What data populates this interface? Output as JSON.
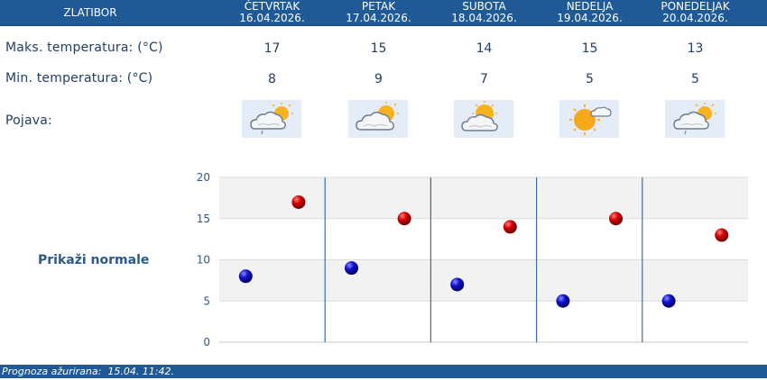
{
  "header": {
    "location": "ZLATIBOR",
    "days": [
      {
        "name": "ČETVRTAK",
        "date": "16.04.2026."
      },
      {
        "name": "PETAK",
        "date": "17.04.2026."
      },
      {
        "name": "SUBOTA",
        "date": "18.04.2026."
      },
      {
        "name": "NEDELJA",
        "date": "19.04.2026."
      },
      {
        "name": "PONEDELJAK",
        "date": "20.04.2026."
      }
    ]
  },
  "rows": {
    "max_label": "Maks. temperatura: (°C)",
    "min_label": "Min. temperatura: (°C)",
    "phenomenon_label": "Pojava:"
  },
  "max_temps": [
    "17",
    "15",
    "14",
    "15",
    "13"
  ],
  "min_temps": [
    "8",
    "9",
    "7",
    "5",
    "5"
  ],
  "icons": [
    "sun-cloud-drizzle-icon",
    "sun-cloud-icon",
    "sun-cloud-icon",
    "sun-small-cloud-icon",
    "sun-cloud-drizzle-icon"
  ],
  "show_normals_label": "Prikaži normale",
  "footer": {
    "updated_label": "Prognoza ažurirana:",
    "updated_value": "15.04. 11:42."
  },
  "colors": {
    "header_bg": "#1f5a96",
    "text": "#1f3f66",
    "max_dot": "#cc0000",
    "min_dot": "#0000bb",
    "band": "#f2f2f2"
  },
  "chart_data": {
    "type": "scatter",
    "categories": [
      "ČETVRTAK",
      "PETAK",
      "SUBOTA",
      "NEDELJA",
      "PONEDELJAK"
    ],
    "series": [
      {
        "name": "",
        "role": "max",
        "values": [
          17,
          15,
          14,
          15,
          13
        ]
      },
      {
        "name": "",
        "role": "min",
        "values": [
          8,
          9,
          7,
          5,
          5
        ]
      }
    ],
    "yticks": [
      "0",
      "5",
      "10",
      "15",
      "20"
    ],
    "ylim": [
      0,
      20
    ],
    "grid": true,
    "title": "",
    "xlabel": "",
    "ylabel": ""
  }
}
